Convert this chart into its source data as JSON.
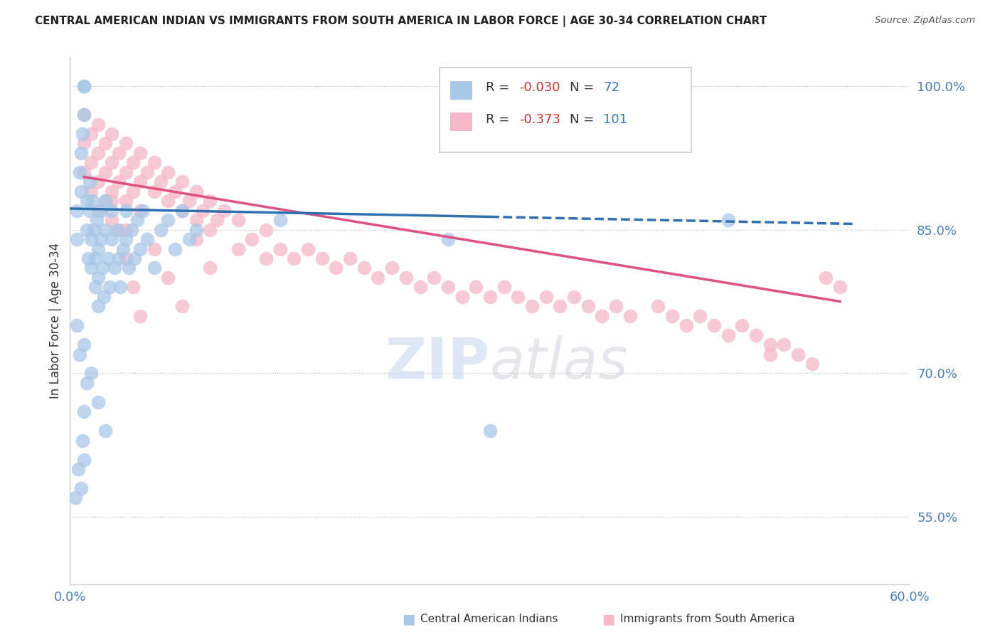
{
  "title": "CENTRAL AMERICAN INDIAN VS IMMIGRANTS FROM SOUTH AMERICA IN LABOR FORCE | AGE 30-34 CORRELATION CHART",
  "source": "Source: ZipAtlas.com",
  "ylabel": "In Labor Force | Age 30-34",
  "xlim": [
    0.0,
    0.6
  ],
  "ylim": [
    0.48,
    1.03
  ],
  "blue_R": "-0.030",
  "blue_N": "72",
  "pink_R": "-0.373",
  "pink_N": "101",
  "blue_color": "#a8c8e8",
  "pink_color": "#f4b8c8",
  "blue_line_color": "#3070b0",
  "pink_line_color": "#e05080",
  "legend_blue_label": "Central American Indians",
  "legend_pink_label": "Immigrants from South America",
  "watermark": "ZIPatlas",
  "blue_line_x0": 0.0,
  "blue_line_y0": 0.872,
  "blue_line_x1": 0.56,
  "blue_line_y1": 0.856,
  "blue_line_solid_end": 0.3,
  "pink_line_x0": 0.01,
  "pink_line_y0": 0.905,
  "pink_line_x1": 0.55,
  "pink_line_y1": 0.775,
  "blue_x": [
    0.005,
    0.005,
    0.007,
    0.008,
    0.008,
    0.009,
    0.01,
    0.01,
    0.01,
    0.012,
    0.012,
    0.013,
    0.014,
    0.014,
    0.015,
    0.015,
    0.016,
    0.017,
    0.018,
    0.018,
    0.019,
    0.02,
    0.02,
    0.02,
    0.022,
    0.022,
    0.023,
    0.024,
    0.025,
    0.025,
    0.027,
    0.028,
    0.03,
    0.03,
    0.032,
    0.034,
    0.035,
    0.036,
    0.038,
    0.04,
    0.04,
    0.042,
    0.044,
    0.046,
    0.048,
    0.05,
    0.052,
    0.055,
    0.06,
    0.065,
    0.07,
    0.075,
    0.08,
    0.085,
    0.09,
    0.01,
    0.015,
    0.02,
    0.025,
    0.01,
    0.008,
    0.005,
    0.007,
    0.012,
    0.01,
    0.009,
    0.006,
    0.004,
    0.15,
    0.27,
    0.3,
    0.47
  ],
  "blue_y": [
    0.87,
    0.84,
    0.91,
    0.93,
    0.89,
    0.95,
    0.97,
    1.0,
    1.0,
    0.88,
    0.85,
    0.82,
    0.9,
    0.87,
    0.84,
    0.81,
    0.88,
    0.85,
    0.82,
    0.79,
    0.86,
    0.83,
    0.8,
    0.77,
    0.87,
    0.84,
    0.81,
    0.78,
    0.88,
    0.85,
    0.82,
    0.79,
    0.87,
    0.84,
    0.81,
    0.85,
    0.82,
    0.79,
    0.83,
    0.87,
    0.84,
    0.81,
    0.85,
    0.82,
    0.86,
    0.83,
    0.87,
    0.84,
    0.81,
    0.85,
    0.86,
    0.83,
    0.87,
    0.84,
    0.85,
    0.73,
    0.7,
    0.67,
    0.64,
    0.61,
    0.58,
    0.75,
    0.72,
    0.69,
    0.66,
    0.63,
    0.6,
    0.57,
    0.86,
    0.84,
    0.64,
    0.86
  ],
  "pink_x": [
    0.01,
    0.01,
    0.01,
    0.015,
    0.015,
    0.015,
    0.02,
    0.02,
    0.02,
    0.02,
    0.025,
    0.025,
    0.025,
    0.03,
    0.03,
    0.03,
    0.03,
    0.035,
    0.035,
    0.04,
    0.04,
    0.04,
    0.04,
    0.045,
    0.045,
    0.05,
    0.05,
    0.05,
    0.055,
    0.06,
    0.06,
    0.065,
    0.07,
    0.07,
    0.075,
    0.08,
    0.08,
    0.085,
    0.09,
    0.09,
    0.095,
    0.1,
    0.1,
    0.105,
    0.11,
    0.12,
    0.12,
    0.13,
    0.14,
    0.14,
    0.15,
    0.16,
    0.17,
    0.18,
    0.19,
    0.2,
    0.21,
    0.22,
    0.23,
    0.24,
    0.25,
    0.26,
    0.27,
    0.28,
    0.29,
    0.3,
    0.31,
    0.32,
    0.33,
    0.34,
    0.35,
    0.36,
    0.37,
    0.38,
    0.39,
    0.4,
    0.42,
    0.43,
    0.44,
    0.45,
    0.46,
    0.47,
    0.48,
    0.49,
    0.5,
    0.5,
    0.51,
    0.52,
    0.53,
    0.54,
    0.55,
    0.03,
    0.035,
    0.04,
    0.045,
    0.05,
    0.06,
    0.07,
    0.08,
    0.09,
    0.1
  ],
  "pink_y": [
    0.97,
    0.94,
    0.91,
    0.95,
    0.92,
    0.89,
    0.96,
    0.93,
    0.9,
    0.87,
    0.94,
    0.91,
    0.88,
    0.95,
    0.92,
    0.89,
    0.86,
    0.93,
    0.9,
    0.94,
    0.91,
    0.88,
    0.85,
    0.92,
    0.89,
    0.93,
    0.9,
    0.87,
    0.91,
    0.92,
    0.89,
    0.9,
    0.91,
    0.88,
    0.89,
    0.9,
    0.87,
    0.88,
    0.89,
    0.86,
    0.87,
    0.88,
    0.85,
    0.86,
    0.87,
    0.86,
    0.83,
    0.84,
    0.85,
    0.82,
    0.83,
    0.82,
    0.83,
    0.82,
    0.81,
    0.82,
    0.81,
    0.8,
    0.81,
    0.8,
    0.79,
    0.8,
    0.79,
    0.78,
    0.79,
    0.78,
    0.79,
    0.78,
    0.77,
    0.78,
    0.77,
    0.78,
    0.77,
    0.76,
    0.77,
    0.76,
    0.77,
    0.76,
    0.75,
    0.76,
    0.75,
    0.74,
    0.75,
    0.74,
    0.73,
    0.72,
    0.73,
    0.72,
    0.71,
    0.8,
    0.79,
    0.88,
    0.85,
    0.82,
    0.79,
    0.76,
    0.83,
    0.8,
    0.77,
    0.84,
    0.81
  ]
}
